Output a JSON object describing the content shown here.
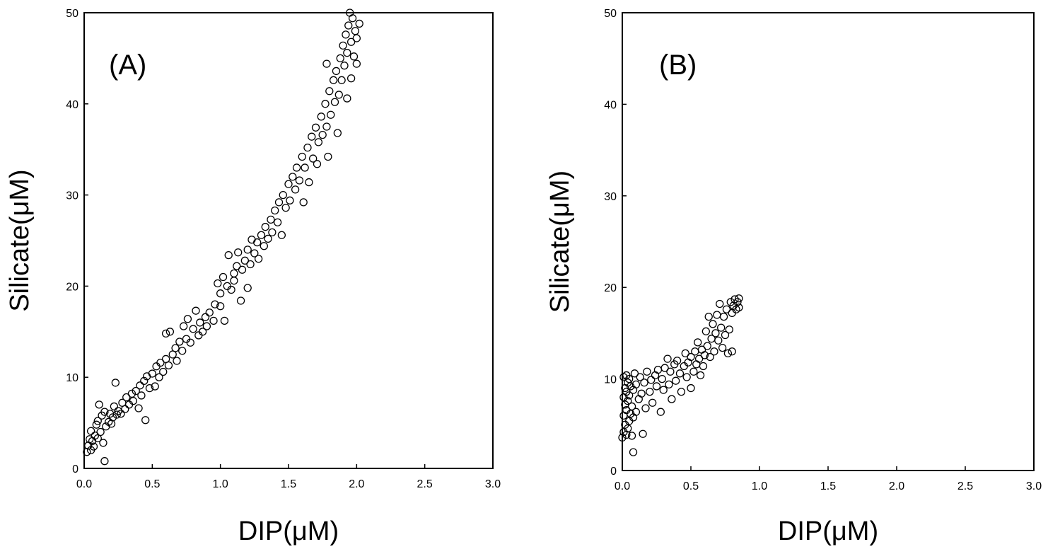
{
  "chart_data": [
    {
      "type": "scatter",
      "panel_label": "(A)",
      "xlabel": "DIP(μM)",
      "ylabel": "Silicate(μM)",
      "xlim": [
        0,
        3.0
      ],
      "ylim": [
        0,
        50
      ],
      "xticks": [
        "0.0",
        "0.5",
        "1.0",
        "1.5",
        "2.0",
        "2.5",
        "3.0"
      ],
      "yticks": [
        "0",
        "10",
        "20",
        "30",
        "40",
        "50"
      ],
      "marker": "open-circle",
      "series": [
        {
          "points": [
            [
              0.02,
              1.8
            ],
            [
              0.03,
              2.5
            ],
            [
              0.04,
              3.2
            ],
            [
              0.05,
              2.0
            ],
            [
              0.05,
              4.1
            ],
            [
              0.06,
              3.0
            ],
            [
              0.07,
              2.4
            ],
            [
              0.08,
              3.6
            ],
            [
              0.09,
              4.8
            ],
            [
              0.1,
              3.3
            ],
            [
              0.1,
              5.2
            ],
            [
              0.11,
              7.0
            ],
            [
              0.12,
              4.0
            ],
            [
              0.13,
              5.8
            ],
            [
              0.14,
              2.8
            ],
            [
              0.15,
              0.8
            ],
            [
              0.15,
              6.2
            ],
            [
              0.16,
              4.6
            ],
            [
              0.18,
              5.1
            ],
            [
              0.19,
              6.0
            ],
            [
              0.2,
              4.9
            ],
            [
              0.21,
              5.6
            ],
            [
              0.22,
              6.8
            ],
            [
              0.23,
              9.4
            ],
            [
              0.24,
              5.9
            ],
            [
              0.25,
              6.3
            ],
            [
              0.27,
              6.0
            ],
            [
              0.28,
              7.2
            ],
            [
              0.3,
              6.5
            ],
            [
              0.31,
              7.8
            ],
            [
              0.33,
              7.0
            ],
            [
              0.35,
              8.2
            ],
            [
              0.36,
              7.4
            ],
            [
              0.38,
              8.5
            ],
            [
              0.4,
              6.6
            ],
            [
              0.41,
              9.1
            ],
            [
              0.42,
              8.0
            ],
            [
              0.44,
              9.6
            ],
            [
              0.45,
              5.3
            ],
            [
              0.46,
              10.1
            ],
            [
              0.48,
              8.8
            ],
            [
              0.5,
              10.4
            ],
            [
              0.52,
              9.0
            ],
            [
              0.53,
              11.2
            ],
            [
              0.55,
              10.0
            ],
            [
              0.56,
              11.6
            ],
            [
              0.58,
              10.6
            ],
            [
              0.6,
              12.0
            ],
            [
              0.6,
              14.8
            ],
            [
              0.62,
              11.3
            ],
            [
              0.63,
              15.0
            ],
            [
              0.65,
              12.5
            ],
            [
              0.67,
              13.2
            ],
            [
              0.68,
              11.8
            ],
            [
              0.7,
              13.9
            ],
            [
              0.72,
              12.9
            ],
            [
              0.73,
              15.6
            ],
            [
              0.75,
              14.2
            ],
            [
              0.76,
              16.4
            ],
            [
              0.78,
              13.8
            ],
            [
              0.8,
              15.3
            ],
            [
              0.82,
              17.3
            ],
            [
              0.84,
              14.6
            ],
            [
              0.85,
              16.0
            ],
            [
              0.87,
              15.0
            ],
            [
              0.89,
              16.6
            ],
            [
              0.9,
              15.6
            ],
            [
              0.92,
              17.1
            ],
            [
              0.95,
              16.2
            ],
            [
              0.96,
              18.0
            ],
            [
              0.98,
              20.3
            ],
            [
              1.0,
              17.8
            ],
            [
              1.0,
              19.2
            ],
            [
              1.02,
              21.0
            ],
            [
              1.03,
              16.2
            ],
            [
              1.05,
              20.0
            ],
            [
              1.06,
              23.4
            ],
            [
              1.08,
              19.6
            ],
            [
              1.1,
              21.4
            ],
            [
              1.1,
              20.6
            ],
            [
              1.12,
              22.2
            ],
            [
              1.13,
              23.7
            ],
            [
              1.15,
              18.4
            ],
            [
              1.16,
              21.8
            ],
            [
              1.18,
              22.8
            ],
            [
              1.2,
              19.8
            ],
            [
              1.2,
              24.0
            ],
            [
              1.22,
              22.4
            ],
            [
              1.23,
              25.1
            ],
            [
              1.25,
              23.6
            ],
            [
              1.27,
              24.8
            ],
            [
              1.28,
              23.0
            ],
            [
              1.3,
              25.6
            ],
            [
              1.32,
              24.4
            ],
            [
              1.33,
              26.5
            ],
            [
              1.35,
              25.2
            ],
            [
              1.37,
              27.3
            ],
            [
              1.38,
              25.9
            ],
            [
              1.4,
              28.3
            ],
            [
              1.42,
              27.0
            ],
            [
              1.43,
              29.2
            ],
            [
              1.45,
              25.6
            ],
            [
              1.46,
              30.0
            ],
            [
              1.48,
              28.6
            ],
            [
              1.5,
              31.2
            ],
            [
              1.51,
              29.4
            ],
            [
              1.53,
              32.0
            ],
            [
              1.55,
              30.6
            ],
            [
              1.56,
              33.0
            ],
            [
              1.58,
              31.6
            ],
            [
              1.6,
              34.2
            ],
            [
              1.61,
              29.2
            ],
            [
              1.62,
              33.0
            ],
            [
              1.64,
              35.2
            ],
            [
              1.65,
              31.4
            ],
            [
              1.67,
              36.4
            ],
            [
              1.68,
              34.0
            ],
            [
              1.7,
              37.4
            ],
            [
              1.71,
              33.4
            ],
            [
              1.72,
              35.8
            ],
            [
              1.74,
              38.6
            ],
            [
              1.75,
              36.6
            ],
            [
              1.77,
              40.0
            ],
            [
              1.78,
              37.5
            ],
            [
              1.78,
              44.4
            ],
            [
              1.8,
              41.4
            ],
            [
              1.81,
              38.8
            ],
            [
              1.83,
              42.6
            ],
            [
              1.84,
              40.2
            ],
            [
              1.85,
              43.6
            ],
            [
              1.87,
              41.0
            ],
            [
              1.88,
              45.0
            ],
            [
              1.89,
              42.6
            ],
            [
              1.9,
              46.4
            ],
            [
              1.91,
              44.2
            ],
            [
              1.92,
              47.6
            ],
            [
              1.93,
              45.6
            ],
            [
              1.94,
              48.6
            ],
            [
              1.95,
              50.0
            ],
            [
              1.96,
              46.8
            ],
            [
              1.97,
              49.4
            ],
            [
              1.98,
              45.2
            ],
            [
              1.99,
              48.0
            ],
            [
              2.0,
              44.4
            ],
            [
              2.0,
              47.2
            ],
            [
              2.02,
              48.8
            ],
            [
              1.96,
              42.8
            ],
            [
              1.93,
              40.6
            ],
            [
              1.86,
              36.8
            ],
            [
              1.79,
              34.2
            ]
          ]
        }
      ]
    },
    {
      "type": "scatter",
      "panel_label": "(B)",
      "xlabel": "DIP(μM)",
      "ylabel": "Silicate(μM)",
      "xlim": [
        0,
        3.0
      ],
      "ylim": [
        0,
        50
      ],
      "xticks": [
        "0.0",
        "0.5",
        "1.0",
        "1.5",
        "2.0",
        "2.5",
        "3.0"
      ],
      "yticks": [
        "0",
        "10",
        "20",
        "30",
        "40",
        "50"
      ],
      "marker": "open-circle",
      "series": [
        {
          "points": [
            [
              0.0,
              3.6
            ],
            [
              0.01,
              4.2
            ],
            [
              0.01,
              6.0
            ],
            [
              0.01,
              8.0
            ],
            [
              0.01,
              10.2
            ],
            [
              0.02,
              5.0
            ],
            [
              0.02,
              7.2
            ],
            [
              0.02,
              9.0
            ],
            [
              0.03,
              3.9
            ],
            [
              0.03,
              6.6
            ],
            [
              0.03,
              8.6
            ],
            [
              0.03,
              10.4
            ],
            [
              0.04,
              4.6
            ],
            [
              0.04,
              7.6
            ],
            [
              0.04,
              9.6
            ],
            [
              0.05,
              5.4
            ],
            [
              0.05,
              8.2
            ],
            [
              0.05,
              10.0
            ],
            [
              0.06,
              6.2
            ],
            [
              0.06,
              9.2
            ],
            [
              0.07,
              3.8
            ],
            [
              0.07,
              7.0
            ],
            [
              0.08,
              5.8
            ],
            [
              0.08,
              8.8
            ],
            [
              0.09,
              10.6
            ],
            [
              0.1,
              6.4
            ],
            [
              0.1,
              9.4
            ],
            [
              0.08,
              2.0
            ],
            [
              0.12,
              7.8
            ],
            [
              0.13,
              10.2
            ],
            [
              0.14,
              8.4
            ],
            [
              0.15,
              4.0
            ],
            [
              0.16,
              9.6
            ],
            [
              0.17,
              6.8
            ],
            [
              0.18,
              10.8
            ],
            [
              0.2,
              8.6
            ],
            [
              0.21,
              9.9
            ],
            [
              0.22,
              7.4
            ],
            [
              0.24,
              10.4
            ],
            [
              0.25,
              9.2
            ],
            [
              0.26,
              11.0
            ],
            [
              0.28,
              6.4
            ],
            [
              0.29,
              10.0
            ],
            [
              0.3,
              8.8
            ],
            [
              0.31,
              11.2
            ],
            [
              0.33,
              12.2
            ],
            [
              0.34,
              9.4
            ],
            [
              0.35,
              10.8
            ],
            [
              0.36,
              7.8
            ],
            [
              0.38,
              11.6
            ],
            [
              0.39,
              9.8
            ],
            [
              0.4,
              12.0
            ],
            [
              0.42,
              10.6
            ],
            [
              0.43,
              8.6
            ],
            [
              0.45,
              11.4
            ],
            [
              0.46,
              12.8
            ],
            [
              0.47,
              10.2
            ],
            [
              0.48,
              11.8
            ],
            [
              0.5,
              9.0
            ],
            [
              0.5,
              12.4
            ],
            [
              0.52,
              10.8
            ],
            [
              0.53,
              13.0
            ],
            [
              0.54,
              11.6
            ],
            [
              0.55,
              14.0
            ],
            [
              0.56,
              12.2
            ],
            [
              0.57,
              10.4
            ],
            [
              0.58,
              13.2
            ],
            [
              0.59,
              11.4
            ],
            [
              0.6,
              12.6
            ],
            [
              0.61,
              15.2
            ],
            [
              0.62,
              13.6
            ],
            [
              0.63,
              16.8
            ],
            [
              0.64,
              12.4
            ],
            [
              0.65,
              14.4
            ],
            [
              0.66,
              16.0
            ],
            [
              0.67,
              13.0
            ],
            [
              0.68,
              15.0
            ],
            [
              0.69,
              17.0
            ],
            [
              0.7,
              14.2
            ],
            [
              0.71,
              18.2
            ],
            [
              0.72,
              15.6
            ],
            [
              0.73,
              13.4
            ],
            [
              0.74,
              16.8
            ],
            [
              0.75,
              14.8
            ],
            [
              0.76,
              17.6
            ],
            [
              0.77,
              12.8
            ],
            [
              0.78,
              15.4
            ],
            [
              0.79,
              18.4
            ],
            [
              0.8,
              17.2
            ],
            [
              0.8,
              13.0
            ],
            [
              0.81,
              18.0
            ],
            [
              0.82,
              18.7
            ],
            [
              0.83,
              17.6
            ],
            [
              0.84,
              18.4
            ],
            [
              0.85,
              18.8
            ],
            [
              0.85,
              17.8
            ]
          ]
        }
      ]
    }
  ]
}
